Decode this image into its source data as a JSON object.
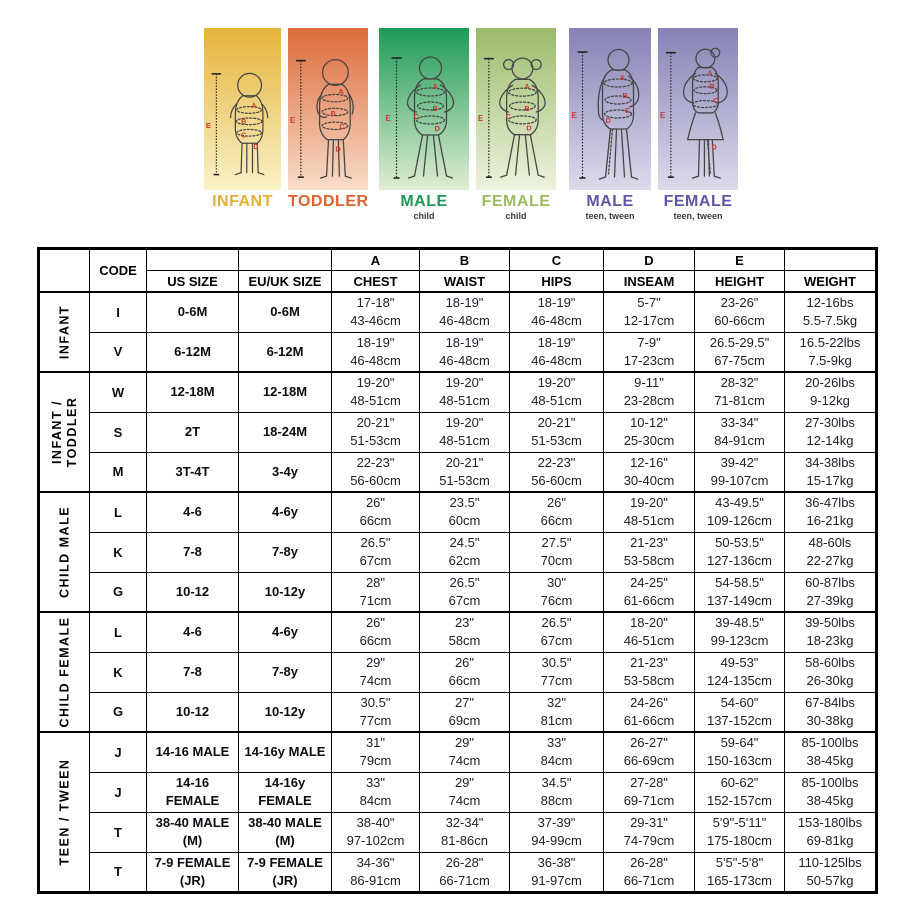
{
  "figure_panels": [
    {
      "label": "INFANT",
      "sublabel": "",
      "figure": "infant",
      "bg_top": "#e4b43a",
      "bg_bottom": "#faf2c8",
      "label_color": "#e5af35"
    },
    {
      "label": "TODDLER",
      "sublabel": "",
      "figure": "toddler",
      "bg_top": "#dd6a3a",
      "bg_bottom": "#f8ddc9",
      "label_color": "#dd6131"
    },
    {
      "label": "MALE",
      "sublabel": "child",
      "figure": "male-child",
      "bg_top": "#1d9a58",
      "bg_bottom": "#e0edd2",
      "label_color": "#1d9a58"
    },
    {
      "label": "FEMALE",
      "sublabel": "child",
      "figure": "female-child",
      "bg_top": "#9cbb6b",
      "bg_bottom": "#edf2de",
      "label_color": "#9cbb62"
    },
    {
      "label": "MALE",
      "sublabel": "teen, tween",
      "figure": "male-teen",
      "bg_top": "#8781b5",
      "bg_bottom": "#dddaeb",
      "label_color": "#5d57a4"
    },
    {
      "label": "FEMALE",
      "sublabel": "teen, tween",
      "figure": "female-teen",
      "bg_top": "#8781b5",
      "bg_bottom": "#dddaeb",
      "label_color": "#5d57a4"
    }
  ],
  "colors": {
    "measure_letter": "#c43b35",
    "figure_outline": "#464646",
    "table_border": "#000000"
  },
  "table": {
    "header": {
      "code": "CODE",
      "us": "US SIZE",
      "eu": "EU/UK SIZE",
      "letters": [
        "A",
        "B",
        "C",
        "D",
        "E"
      ],
      "measures": [
        "CHEST",
        "WAIST",
        "HIPS",
        "INSEAM",
        "HEIGHT"
      ],
      "weight": "WEIGHT"
    },
    "groups": [
      {
        "name_lines": [
          "INFANT"
        ],
        "rows": [
          {
            "code": "I",
            "us": [
              "0-6M"
            ],
            "eu": [
              "0-6M"
            ],
            "chest": [
              "17-18\"",
              "43-46cm"
            ],
            "waist": [
              "18-19\"",
              "46-48cm"
            ],
            "hips": [
              "18-19\"",
              "46-48cm"
            ],
            "inseam": [
              "5-7\"",
              "12-17cm"
            ],
            "height": [
              "23-26\"",
              "60-66cm"
            ],
            "weight": [
              "12-16bs",
              "5.5-7.5kg"
            ]
          },
          {
            "code": "V",
            "us": [
              "6-12M"
            ],
            "eu": [
              "6-12M"
            ],
            "chest": [
              "18-19\"",
              "46-48cm"
            ],
            "waist": [
              "18-19\"",
              "46-48cm"
            ],
            "hips": [
              "18-19\"",
              "46-48cm"
            ],
            "inseam": [
              "7-9\"",
              "17-23cm"
            ],
            "height": [
              "26.5-29.5\"",
              "67-75cm"
            ],
            "weight": [
              "16.5-22lbs",
              "7.5-9kg"
            ]
          }
        ]
      },
      {
        "name_lines": [
          "INFANT /",
          "TODDLER"
        ],
        "rows": [
          {
            "code": "W",
            "us": [
              "12-18M"
            ],
            "eu": [
              "12-18M"
            ],
            "chest": [
              "19-20\"",
              "48-51cm"
            ],
            "waist": [
              "19-20\"",
              "48-51cm"
            ],
            "hips": [
              "19-20\"",
              "48-51cm"
            ],
            "inseam": [
              "9-11\"",
              "23-28cm"
            ],
            "height": [
              "28-32\"",
              "71-81cm"
            ],
            "weight": [
              "20-26lbs",
              "9-12kg"
            ]
          },
          {
            "code": "S",
            "us": [
              "2T"
            ],
            "eu": [
              "18-24M"
            ],
            "chest": [
              "20-21\"",
              "51-53cm"
            ],
            "waist": [
              "19-20\"",
              "48-51cm"
            ],
            "hips": [
              "20-21\"",
              "51-53cm"
            ],
            "inseam": [
              "10-12\"",
              "25-30cm"
            ],
            "height": [
              "33-34\"",
              "84-91cm"
            ],
            "weight": [
              "27-30lbs",
              "12-14kg"
            ]
          },
          {
            "code": "M",
            "us": [
              "3T-4T"
            ],
            "eu": [
              "3-4y"
            ],
            "chest": [
              "22-23\"",
              "56-60cm"
            ],
            "waist": [
              "20-21\"",
              "51-53cm"
            ],
            "hips": [
              "22-23\"",
              "56-60cm"
            ],
            "inseam": [
              "12-16\"",
              "30-40cm"
            ],
            "height": [
              "39-42\"",
              "99-107cm"
            ],
            "weight": [
              "34-38lbs",
              "15-17kg"
            ]
          }
        ]
      },
      {
        "name_lines": [
          "CHILD MALE"
        ],
        "rows": [
          {
            "code": "L",
            "us": [
              "4-6"
            ],
            "eu": [
              "4-6y"
            ],
            "chest": [
              "26\"",
              "66cm"
            ],
            "waist": [
              "23.5\"",
              "60cm"
            ],
            "hips": [
              "26\"",
              "66cm"
            ],
            "inseam": [
              "19-20\"",
              "48-51cm"
            ],
            "height": [
              "43-49.5\"",
              "109-126cm"
            ],
            "weight": [
              "36-47lbs",
              "16-21kg"
            ]
          },
          {
            "code": "K",
            "us": [
              "7-8"
            ],
            "eu": [
              "7-8y"
            ],
            "chest": [
              "26.5\"",
              "67cm"
            ],
            "waist": [
              "24.5\"",
              "62cm"
            ],
            "hips": [
              "27.5\"",
              "70cm"
            ],
            "inseam": [
              "21-23\"",
              "53-58cm"
            ],
            "height": [
              "50-53.5\"",
              "127-136cm"
            ],
            "weight": [
              "48-60ls",
              "22-27kg"
            ]
          },
          {
            "code": "G",
            "us": [
              "10-12"
            ],
            "eu": [
              "10-12y"
            ],
            "chest": [
              "28\"",
              "71cm"
            ],
            "waist": [
              "26.5\"",
              "67cm"
            ],
            "hips": [
              "30\"",
              "76cm"
            ],
            "inseam": [
              "24-25\"",
              "61-66cm"
            ],
            "height": [
              "54-58.5\"",
              "137-149cm"
            ],
            "weight": [
              "60-87lbs",
              "27-39kg"
            ]
          }
        ]
      },
      {
        "name_lines": [
          "CHILD FEMALE"
        ],
        "rows": [
          {
            "code": "L",
            "us": [
              "4-6"
            ],
            "eu": [
              "4-6y"
            ],
            "chest": [
              "26\"",
              "66cm"
            ],
            "waist": [
              "23\"",
              "58cm"
            ],
            "hips": [
              "26.5\"",
              "67cm"
            ],
            "inseam": [
              "18-20\"",
              "46-51cm"
            ],
            "height": [
              "39-48.5\"",
              "99-123cm"
            ],
            "weight": [
              "39-50lbs",
              "18-23kg"
            ]
          },
          {
            "code": "K",
            "us": [
              "7-8"
            ],
            "eu": [
              "7-8y"
            ],
            "chest": [
              "29\"",
              "74cm"
            ],
            "waist": [
              "26\"",
              "66cm"
            ],
            "hips": [
              "30.5\"",
              "77cm"
            ],
            "inseam": [
              "21-23\"",
              "53-58cm"
            ],
            "height": [
              "49-53\"",
              "124-135cm"
            ],
            "weight": [
              "58-60lbs",
              "26-30kg"
            ]
          },
          {
            "code": "G",
            "us": [
              "10-12"
            ],
            "eu": [
              "10-12y"
            ],
            "chest": [
              "30.5\"",
              "77cm"
            ],
            "waist": [
              "27\"",
              "69cm"
            ],
            "hips": [
              "32\"",
              "81cm"
            ],
            "inseam": [
              "24-26\"",
              "61-66cm"
            ],
            "height": [
              "54-60\"",
              "137-152cm"
            ],
            "weight": [
              "67-84lbs",
              "30-38kg"
            ]
          }
        ]
      },
      {
        "name_lines": [
          "TEEN / TWEEN"
        ],
        "rows": [
          {
            "code": "J",
            "us": [
              "14-16 MALE"
            ],
            "eu": [
              "14-16y MALE"
            ],
            "chest": [
              "31\"",
              "79cm"
            ],
            "waist": [
              "29\"",
              "74cm"
            ],
            "hips": [
              "33\"",
              "84cm"
            ],
            "inseam": [
              "26-27\"",
              "66-69cm"
            ],
            "height": [
              "59-64\"",
              "150-163cm"
            ],
            "weight": [
              "85-100lbs",
              "38-45kg"
            ]
          },
          {
            "code": "J",
            "us": [
              "14-16",
              "FEMALE"
            ],
            "eu": [
              "14-16y",
              "FEMALE"
            ],
            "chest": [
              "33\"",
              "84cm"
            ],
            "waist": [
              "29\"",
              "74cm"
            ],
            "hips": [
              "34.5\"",
              "88cm"
            ],
            "inseam": [
              "27-28\"",
              "69-71cm"
            ],
            "height": [
              "60-62\"",
              "152-157cm"
            ],
            "weight": [
              "85-100lbs",
              "38-45kg"
            ]
          },
          {
            "code": "T",
            "us": [
              "38-40 MALE",
              "(M)"
            ],
            "eu": [
              "38-40 MALE",
              "(M)"
            ],
            "chest": [
              "38-40\"",
              "97-102cm"
            ],
            "waist": [
              "32-34\"",
              "81-86cn"
            ],
            "hips": [
              "37-39\"",
              "94-99cm"
            ],
            "inseam": [
              "29-31\"",
              "74-79cm"
            ],
            "height": [
              "5'9\"-5'11\"",
              "175-180cm"
            ],
            "weight": [
              "153-180lbs",
              "69-81kg"
            ]
          },
          {
            "code": "T",
            "us": [
              "7-9 FEMALE",
              "(JR)"
            ],
            "eu": [
              "7-9 FEMALE",
              "(JR)"
            ],
            "chest": [
              "34-36\"",
              "86-91cm"
            ],
            "waist": [
              "26-28\"",
              "66-71cm"
            ],
            "hips": [
              "36-38\"",
              "91-97cm"
            ],
            "inseam": [
              "26-28\"",
              "66-71cm"
            ],
            "height": [
              "5'5\"-5'8\"",
              "165-173cm"
            ],
            "weight": [
              "110-125lbs",
              "50-57kg"
            ]
          }
        ]
      }
    ]
  }
}
